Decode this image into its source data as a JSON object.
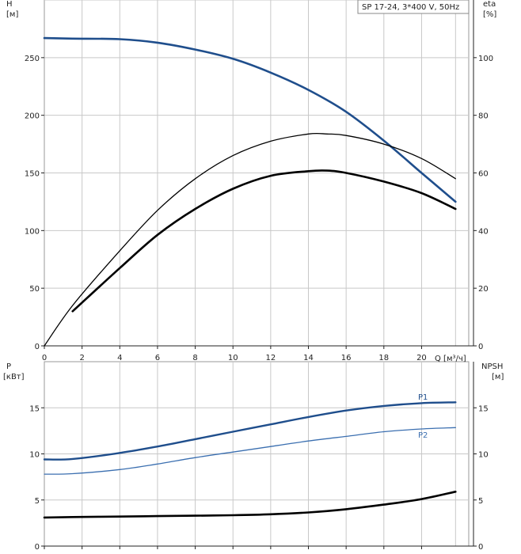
{
  "legend": "SP 17-24, 3*400 V, 50Hz",
  "chart_data": [
    {
      "type": "line",
      "name": "head-efficiency",
      "y_label": "H",
      "y_unit": "[м]",
      "y2_label": "eta",
      "y2_unit": "[%]",
      "x_label": "Q [м³/ч]",
      "xlim": [
        0,
        22.5
      ],
      "ylim": [
        0,
        300
      ],
      "y2lim": [
        0,
        120
      ],
      "x_ticks": [
        0,
        2,
        4,
        6,
        8,
        10,
        12,
        14,
        16,
        18,
        20
      ],
      "y_ticks": [
        0,
        50,
        100,
        150,
        200,
        250
      ],
      "y2_ticks": [
        0,
        20,
        40,
        60,
        80,
        100
      ],
      "grid": true,
      "series": [
        {
          "axis": "left",
          "color": "#1f4e8c",
          "points": [
            [
              0,
              267
            ],
            [
              1.5,
              266.5
            ],
            [
              4,
              266
            ],
            [
              6,
              263
            ],
            [
              8,
              257
            ],
            [
              10,
              249
            ],
            [
              12,
              237
            ],
            [
              14,
              222
            ],
            [
              16,
              203
            ],
            [
              18,
              178
            ],
            [
              20,
              150
            ],
            [
              21.8,
              125
            ]
          ]
        },
        {
          "axis": "right",
          "color": "#000000",
          "points": [
            [
              0,
              0
            ],
            [
              1.5,
              14
            ],
            [
              4,
              33
            ],
            [
              6,
              47
            ],
            [
              8,
              58
            ],
            [
              10,
              66
            ],
            [
              12,
              71
            ],
            [
              14,
              73.5
            ],
            [
              15,
              73.5
            ],
            [
              16,
              73
            ],
            [
              18,
              70
            ],
            [
              20,
              65
            ],
            [
              21.8,
              58
            ]
          ]
        },
        {
          "axis": "right",
          "color": "#000000",
          "points": [
            [
              1.5,
              12
            ],
            [
              4,
              27
            ],
            [
              6,
              38.5
            ],
            [
              8,
              47.5
            ],
            [
              10,
              54.5
            ],
            [
              12,
              59
            ],
            [
              14,
              60.6
            ],
            [
              15,
              60.8
            ],
            [
              16,
              60
            ],
            [
              18,
              57
            ],
            [
              20,
              53
            ],
            [
              21.8,
              47.5
            ]
          ]
        }
      ]
    },
    {
      "type": "line",
      "name": "power-npsh",
      "y_label": "P",
      "y_unit": "[кВт]",
      "y2_label": "NPSH",
      "y2_unit": "[м]",
      "xlim": [
        0,
        22.5
      ],
      "ylim": [
        0,
        20
      ],
      "y2lim": [
        0,
        20
      ],
      "y_ticks": [
        0,
        5,
        10,
        15
      ],
      "y2_ticks": [
        0,
        5,
        10,
        15
      ],
      "grid": true,
      "series": [
        {
          "name": "P1",
          "axis": "left",
          "color": "#1f4e8c",
          "points": [
            [
              0,
              9.4
            ],
            [
              1.5,
              9.45
            ],
            [
              4,
              10.1
            ],
            [
              6,
              10.8
            ],
            [
              8,
              11.6
            ],
            [
              10,
              12.4
            ],
            [
              12,
              13.2
            ],
            [
              14,
              14.0
            ],
            [
              16,
              14.7
            ],
            [
              18,
              15.2
            ],
            [
              20,
              15.5
            ],
            [
              21.8,
              15.6
            ]
          ]
        },
        {
          "name": "P2",
          "axis": "left",
          "color": "#3b6fb0",
          "points": [
            [
              0,
              7.8
            ],
            [
              1.5,
              7.85
            ],
            [
              4,
              8.3
            ],
            [
              6,
              8.9
            ],
            [
              8,
              9.6
            ],
            [
              10,
              10.2
            ],
            [
              12,
              10.8
            ],
            [
              14,
              11.4
            ],
            [
              16,
              11.9
            ],
            [
              18,
              12.4
            ],
            [
              20,
              12.7
            ],
            [
              21.8,
              12.85
            ]
          ]
        },
        {
          "axis": "right",
          "color": "#000000",
          "points": [
            [
              0,
              3.1
            ],
            [
              1.5,
              3.15
            ],
            [
              4,
              3.2
            ],
            [
              6,
              3.25
            ],
            [
              8,
              3.3
            ],
            [
              10,
              3.35
            ],
            [
              12,
              3.45
            ],
            [
              14,
              3.65
            ],
            [
              16,
              4.0
            ],
            [
              18,
              4.5
            ],
            [
              20,
              5.1
            ],
            [
              21.8,
              5.9
            ]
          ]
        }
      ]
    }
  ]
}
